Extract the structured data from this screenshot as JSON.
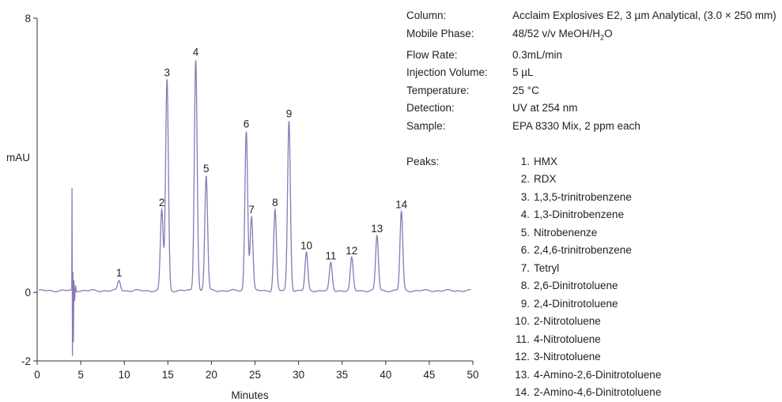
{
  "chart_data": {
    "type": "line",
    "title": "",
    "xlabel": "Minutes",
    "ylabel": "mAU",
    "xlim": [
      0,
      50
    ],
    "ylim": [
      -2,
      8
    ],
    "x_ticks": [
      "0",
      "5",
      "10",
      "15",
      "20",
      "25",
      "30",
      "35",
      "40",
      "45",
      "50"
    ],
    "y_ticks": [
      "-2",
      "0",
      "8"
    ],
    "grid": false,
    "line_color": "#8a78b8",
    "baseline_mAU": 0.05,
    "injection_disturbance": {
      "time": 4.0,
      "max_mAU": 3.05,
      "min_mAU": -1.85
    },
    "peaks": [
      {
        "label": "1",
        "time": 9.4,
        "height": 0.3
      },
      {
        "label": "2",
        "time": 14.3,
        "height": 2.35
      },
      {
        "label": "3",
        "time": 14.9,
        "height": 6.15
      },
      {
        "label": "4",
        "time": 18.2,
        "height": 6.75
      },
      {
        "label": "5",
        "time": 19.4,
        "height": 3.35
      },
      {
        "label": "6",
        "time": 24.0,
        "height": 4.65
      },
      {
        "label": "7",
        "time": 24.6,
        "height": 2.15
      },
      {
        "label": "8",
        "time": 27.3,
        "height": 2.35
      },
      {
        "label": "9",
        "time": 28.9,
        "height": 4.95
      },
      {
        "label": "10",
        "time": 30.9,
        "height": 1.1
      },
      {
        "label": "11",
        "time": 33.7,
        "height": 0.8
      },
      {
        "label": "12",
        "time": 36.1,
        "height": 0.95
      },
      {
        "label": "13",
        "time": 39.0,
        "height": 1.6
      },
      {
        "label": "14",
        "time": 41.8,
        "height": 2.3
      }
    ]
  },
  "info": [
    {
      "key": "Column:",
      "value": "Acclaim Explosives E2, 3 µm Analytical, (3.0 × 250 mm)"
    },
    {
      "key": "Mobile Phase:",
      "value": "48/52 v/v MeOH/H",
      "sub": "2",
      "value_after": "O"
    },
    {
      "key": "Flow Rate:",
      "value": "0.3mL/min"
    },
    {
      "key": "Injection Volume:",
      "value": "5 µL"
    },
    {
      "key": "Temperature:",
      "value": "25 °C"
    },
    {
      "key": "Detection:",
      "value": "UV at 254 nm"
    },
    {
      "key": "Sample:",
      "value": "EPA 8330 Mix, 2 ppm each"
    }
  ],
  "peaks_label": "Peaks:",
  "peak_list": [
    {
      "num": "1.",
      "name": "HMX"
    },
    {
      "num": "2.",
      "name": "RDX"
    },
    {
      "num": "3.",
      "name": "1,3,5-trinitrobenzene"
    },
    {
      "num": "4.",
      "name": "1,3-Dinitrobenzene"
    },
    {
      "num": "5.",
      "name": "Nitrobenenze"
    },
    {
      "num": "6.",
      "name": "2,4,6-trinitrobenzene"
    },
    {
      "num": "7.",
      "name": "Tetryl"
    },
    {
      "num": "8.",
      "name": "2,6-Dinitrotoluene"
    },
    {
      "num": "9.",
      "name": "2,4-Dinitrotoluene"
    },
    {
      "num": "10.",
      "name": "2-Nitrotoluene"
    },
    {
      "num": "11.",
      "name": "4-Nitrotoluene"
    },
    {
      "num": "12.",
      "name": "3-Nitrotoluene"
    },
    {
      "num": "13.",
      "name": "4-Amino-2,6-Dinitrotoluene"
    },
    {
      "num": "14.",
      "name": "2-Amino-4,6-Dinitrotoluene"
    }
  ]
}
